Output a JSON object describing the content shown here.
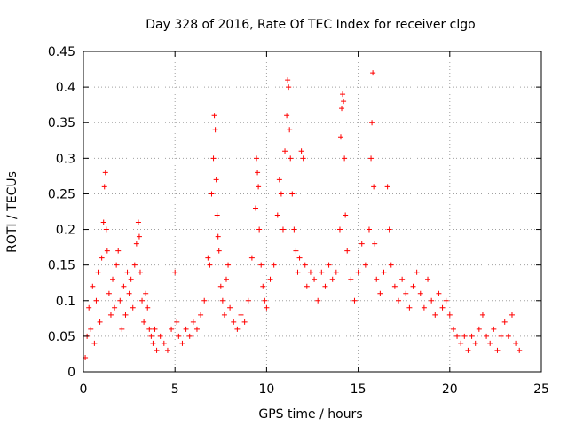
{
  "chart_data": {
    "type": "scatter",
    "title": "Day 328 of 2016, Rate Of TEC Index for receiver clgo",
    "xlabel": "GPS time / hours",
    "ylabel": "ROTI / TECUs",
    "xlim": [
      0,
      25
    ],
    "ylim": [
      0,
      0.45
    ],
    "xticks": [
      0,
      5,
      10,
      15,
      20,
      25
    ],
    "xtick_labels": [
      "0",
      "5",
      "10",
      "15",
      "20",
      "25"
    ],
    "yticks": [
      0,
      0.05,
      0.1,
      0.15,
      0.2,
      0.25,
      0.3,
      0.35,
      0.4,
      0.45
    ],
    "ytick_labels": [
      "0",
      "0.05",
      "0.1",
      "0.15",
      "0.2",
      "0.25",
      "0.3",
      "0.35",
      "0.4",
      "0.45"
    ],
    "grid": true,
    "marker": "plus",
    "color": "#ff0000",
    "series": [
      {
        "name": "ROTI",
        "points": [
          [
            0.1,
            0.02
          ],
          [
            0.2,
            0.05
          ],
          [
            0.3,
            0.09
          ],
          [
            0.4,
            0.06
          ],
          [
            0.5,
            0.12
          ],
          [
            0.6,
            0.04
          ],
          [
            0.7,
            0.1
          ],
          [
            0.8,
            0.14
          ],
          [
            0.9,
            0.07
          ],
          [
            1.0,
            0.16
          ],
          [
            1.1,
            0.21
          ],
          [
            1.15,
            0.26
          ],
          [
            1.2,
            0.28
          ],
          [
            1.25,
            0.2
          ],
          [
            1.3,
            0.17
          ],
          [
            1.4,
            0.11
          ],
          [
            1.5,
            0.08
          ],
          [
            1.6,
            0.13
          ],
          [
            1.7,
            0.09
          ],
          [
            1.8,
            0.15
          ],
          [
            1.9,
            0.17
          ],
          [
            2.0,
            0.1
          ],
          [
            2.1,
            0.06
          ],
          [
            2.2,
            0.12
          ],
          [
            2.3,
            0.08
          ],
          [
            2.4,
            0.14
          ],
          [
            2.5,
            0.11
          ],
          [
            2.6,
            0.13
          ],
          [
            2.7,
            0.09
          ],
          [
            2.8,
            0.15
          ],
          [
            2.9,
            0.18
          ],
          [
            3.0,
            0.21
          ],
          [
            3.05,
            0.19
          ],
          [
            3.1,
            0.14
          ],
          [
            3.2,
            0.1
          ],
          [
            3.3,
            0.07
          ],
          [
            3.4,
            0.11
          ],
          [
            3.5,
            0.09
          ],
          [
            3.6,
            0.06
          ],
          [
            3.7,
            0.05
          ],
          [
            3.8,
            0.04
          ],
          [
            3.9,
            0.06
          ],
          [
            4.0,
            0.03
          ],
          [
            4.2,
            0.05
          ],
          [
            4.4,
            0.04
          ],
          [
            4.6,
            0.03
          ],
          [
            4.8,
            0.06
          ],
          [
            5.0,
            0.14
          ],
          [
            5.1,
            0.07
          ],
          [
            5.2,
            0.05
          ],
          [
            5.4,
            0.04
          ],
          [
            5.6,
            0.06
          ],
          [
            5.8,
            0.05
          ],
          [
            6.0,
            0.07
          ],
          [
            6.2,
            0.06
          ],
          [
            6.4,
            0.08
          ],
          [
            6.6,
            0.1
          ],
          [
            6.8,
            0.16
          ],
          [
            6.9,
            0.15
          ],
          [
            7.0,
            0.25
          ],
          [
            7.1,
            0.3
          ],
          [
            7.15,
            0.36
          ],
          [
            7.2,
            0.34
          ],
          [
            7.25,
            0.27
          ],
          [
            7.3,
            0.22
          ],
          [
            7.35,
            0.19
          ],
          [
            7.4,
            0.17
          ],
          [
            7.5,
            0.12
          ],
          [
            7.6,
            0.1
          ],
          [
            7.7,
            0.08
          ],
          [
            7.8,
            0.13
          ],
          [
            7.9,
            0.15
          ],
          [
            8.0,
            0.09
          ],
          [
            8.2,
            0.07
          ],
          [
            8.4,
            0.06
          ],
          [
            8.6,
            0.08
          ],
          [
            8.8,
            0.07
          ],
          [
            9.0,
            0.1
          ],
          [
            9.2,
            0.16
          ],
          [
            9.4,
            0.23
          ],
          [
            9.45,
            0.3
          ],
          [
            9.5,
            0.28
          ],
          [
            9.55,
            0.26
          ],
          [
            9.6,
            0.2
          ],
          [
            9.7,
            0.15
          ],
          [
            9.8,
            0.12
          ],
          [
            9.9,
            0.1
          ],
          [
            10.0,
            0.09
          ],
          [
            10.2,
            0.13
          ],
          [
            10.4,
            0.15
          ],
          [
            10.6,
            0.22
          ],
          [
            10.7,
            0.27
          ],
          [
            10.8,
            0.25
          ],
          [
            10.9,
            0.2
          ],
          [
            11.0,
            0.31
          ],
          [
            11.1,
            0.36
          ],
          [
            11.15,
            0.41
          ],
          [
            11.2,
            0.4
          ],
          [
            11.25,
            0.34
          ],
          [
            11.3,
            0.3
          ],
          [
            11.4,
            0.25
          ],
          [
            11.5,
            0.2
          ],
          [
            11.6,
            0.17
          ],
          [
            11.7,
            0.14
          ],
          [
            11.8,
            0.16
          ],
          [
            11.9,
            0.31
          ],
          [
            12.0,
            0.3
          ],
          [
            12.1,
            0.15
          ],
          [
            12.2,
            0.12
          ],
          [
            12.4,
            0.14
          ],
          [
            12.6,
            0.13
          ],
          [
            12.8,
            0.1
          ],
          [
            13.0,
            0.14
          ],
          [
            13.2,
            0.12
          ],
          [
            13.4,
            0.15
          ],
          [
            13.6,
            0.13
          ],
          [
            13.8,
            0.14
          ],
          [
            14.0,
            0.2
          ],
          [
            14.05,
            0.33
          ],
          [
            14.1,
            0.37
          ],
          [
            14.15,
            0.39
          ],
          [
            14.2,
            0.38
          ],
          [
            14.25,
            0.3
          ],
          [
            14.3,
            0.22
          ],
          [
            14.4,
            0.17
          ],
          [
            14.6,
            0.13
          ],
          [
            14.8,
            0.1
          ],
          [
            15.0,
            0.14
          ],
          [
            15.2,
            0.18
          ],
          [
            15.4,
            0.15
          ],
          [
            15.6,
            0.2
          ],
          [
            15.7,
            0.3
          ],
          [
            15.75,
            0.35
          ],
          [
            15.8,
            0.42
          ],
          [
            15.85,
            0.26
          ],
          [
            15.9,
            0.18
          ],
          [
            16.0,
            0.13
          ],
          [
            16.2,
            0.11
          ],
          [
            16.4,
            0.14
          ],
          [
            16.6,
            0.26
          ],
          [
            16.7,
            0.2
          ],
          [
            16.8,
            0.15
          ],
          [
            17.0,
            0.12
          ],
          [
            17.2,
            0.1
          ],
          [
            17.4,
            0.13
          ],
          [
            17.6,
            0.11
          ],
          [
            17.8,
            0.09
          ],
          [
            18.0,
            0.12
          ],
          [
            18.2,
            0.14
          ],
          [
            18.4,
            0.11
          ],
          [
            18.6,
            0.09
          ],
          [
            18.8,
            0.13
          ],
          [
            19.0,
            0.1
          ],
          [
            19.2,
            0.08
          ],
          [
            19.4,
            0.11
          ],
          [
            19.6,
            0.09
          ],
          [
            19.8,
            0.1
          ],
          [
            20.0,
            0.08
          ],
          [
            20.2,
            0.06
          ],
          [
            20.4,
            0.05
          ],
          [
            20.6,
            0.04
          ],
          [
            20.8,
            0.05
          ],
          [
            21.0,
            0.03
          ],
          [
            21.2,
            0.05
          ],
          [
            21.4,
            0.04
          ],
          [
            21.6,
            0.06
          ],
          [
            21.8,
            0.08
          ],
          [
            22.0,
            0.05
          ],
          [
            22.2,
            0.04
          ],
          [
            22.4,
            0.06
          ],
          [
            22.6,
            0.03
          ],
          [
            22.8,
            0.05
          ],
          [
            23.0,
            0.07
          ],
          [
            23.2,
            0.05
          ],
          [
            23.4,
            0.08
          ],
          [
            23.6,
            0.04
          ],
          [
            23.8,
            0.03
          ]
        ]
      }
    ]
  }
}
